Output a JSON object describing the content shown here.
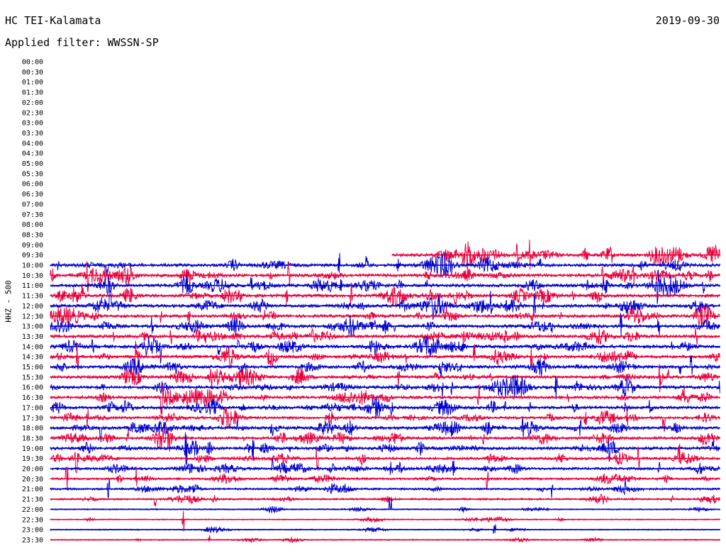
{
  "header": {
    "station": "HC TEI-Kalamata",
    "filter": "Applied filter: WWSSN-SP",
    "date": "2019-09-30"
  },
  "chart_data": {
    "type": "line",
    "title": "HC TEI-Kalamata",
    "subtitle": "Applied filter: WWSSN-SP",
    "ylabel": "HHZ - 500",
    "row_labels": [
      "00:00",
      "00:30",
      "01:00",
      "01:30",
      "02:00",
      "02:30",
      "03:00",
      "03:30",
      "04:00",
      "04:30",
      "05:00",
      "05:30",
      "06:00",
      "06:30",
      "07:00",
      "07:30",
      "08:00",
      "08:30",
      "09:00",
      "09:30",
      "10:00",
      "10:30",
      "11:00",
      "11:30",
      "12:00",
      "12:30",
      "13:00",
      "13:30",
      "14:00",
      "14:30",
      "15:00",
      "15:30",
      "16:00",
      "16:30",
      "17:00",
      "17:30",
      "18:00",
      "18:30",
      "19:00",
      "19:30",
      "20:00",
      "20:30",
      "21:00",
      "21:30",
      "22:00",
      "22:30",
      "23:00",
      "23:30"
    ],
    "trace_colors": [
      "#0000cc",
      "#e8003c"
    ],
    "data_start": "09:30",
    "data_start_fraction": 0.51,
    "activity": [
      0,
      0,
      0,
      0,
      0,
      0,
      0,
      0,
      0,
      0,
      0,
      0,
      0,
      0,
      0,
      0,
      0,
      0,
      0,
      1.0,
      1.0,
      0.95,
      0.95,
      0.9,
      0.95,
      0.9,
      0.95,
      1.0,
      0.95,
      0.9,
      0.95,
      0.95,
      0.9,
      0.85,
      0.9,
      0.8,
      0.95,
      0.85,
      0.9,
      0.75,
      0.7,
      0.55,
      0.5,
      0.4,
      0.15,
      0.12,
      0.1,
      0.1
    ]
  }
}
